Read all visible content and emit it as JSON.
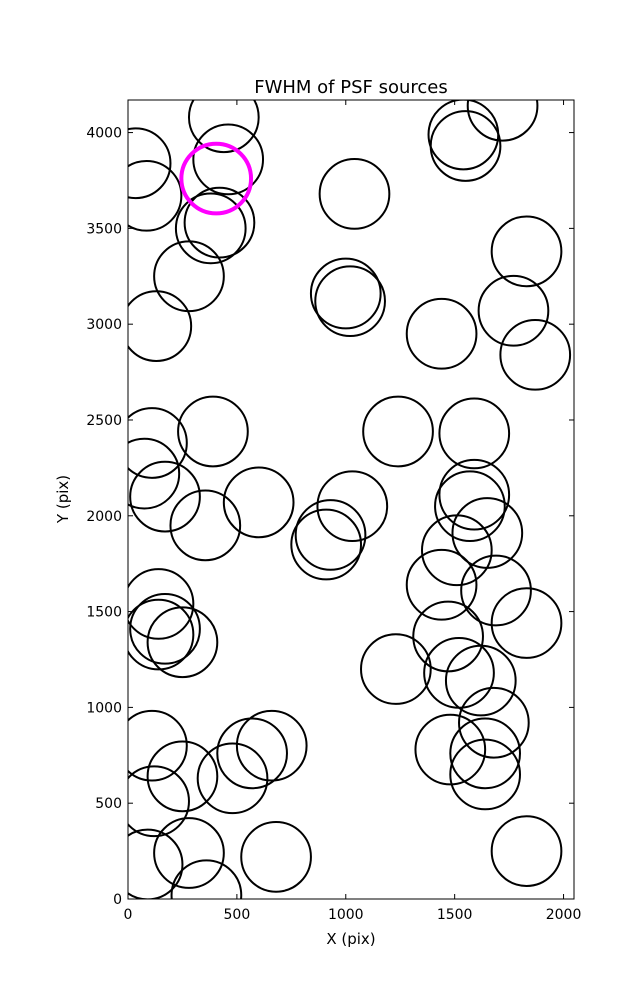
{
  "chart_data": {
    "type": "scatter",
    "title": "FWHM of PSF sources",
    "xlabel": "X (pix)",
    "ylabel": "Y (pix)",
    "xlim": [
      0,
      2048
    ],
    "ylim": [
      0,
      4170
    ],
    "xticks": [
      0,
      500,
      1000,
      1500,
      2000
    ],
    "yticks": [
      0,
      500,
      1000,
      1500,
      2000,
      2500,
      3000,
      3500,
      4000
    ],
    "grid": false,
    "marker": "open-circle",
    "radius": 160,
    "default_color": "#000000",
    "highlight_color": "#ff00ff",
    "points": [
      {
        "x": 35,
        "y": 3840
      },
      {
        "x": 85,
        "y": 3670
      },
      {
        "x": 440,
        "y": 4080
      },
      {
        "x": 460,
        "y": 3860
      },
      {
        "x": 420,
        "y": 3530
      },
      {
        "x": 380,
        "y": 3500
      },
      {
        "x": 280,
        "y": 3250
      },
      {
        "x": 130,
        "y": 2990
      },
      {
        "x": 1040,
        "y": 3680
      },
      {
        "x": 1000,
        "y": 3160
      },
      {
        "x": 1020,
        "y": 3120
      },
      {
        "x": 1440,
        "y": 2950
      },
      {
        "x": 1540,
        "y": 3990
      },
      {
        "x": 1550,
        "y": 3930
      },
      {
        "x": 1720,
        "y": 4140
      },
      {
        "x": 1830,
        "y": 3380
      },
      {
        "x": 1770,
        "y": 3070
      },
      {
        "x": 1870,
        "y": 2840
      },
      {
        "x": 1240,
        "y": 2440
      },
      {
        "x": 1590,
        "y": 2430
      },
      {
        "x": 110,
        "y": 2380
      },
      {
        "x": 390,
        "y": 2440
      },
      {
        "x": 75,
        "y": 2220
      },
      {
        "x": 170,
        "y": 2100
      },
      {
        "x": 600,
        "y": 2070
      },
      {
        "x": 355,
        "y": 1950
      },
      {
        "x": 1030,
        "y": 2050
      },
      {
        "x": 930,
        "y": 1900
      },
      {
        "x": 910,
        "y": 1850
      },
      {
        "x": 1590,
        "y": 2110
      },
      {
        "x": 1570,
        "y": 2050
      },
      {
        "x": 1650,
        "y": 1910
      },
      {
        "x": 1510,
        "y": 1820
      },
      {
        "x": 1440,
        "y": 1640
      },
      {
        "x": 1690,
        "y": 1610
      },
      {
        "x": 1830,
        "y": 1440
      },
      {
        "x": 140,
        "y": 1540
      },
      {
        "x": 170,
        "y": 1410
      },
      {
        "x": 140,
        "y": 1380
      },
      {
        "x": 250,
        "y": 1340
      },
      {
        "x": 1470,
        "y": 1370
      },
      {
        "x": 1230,
        "y": 1200
      },
      {
        "x": 1520,
        "y": 1180
      },
      {
        "x": 1620,
        "y": 1140
      },
      {
        "x": 1680,
        "y": 920
      },
      {
        "x": 110,
        "y": 800
      },
      {
        "x": 250,
        "y": 640
      },
      {
        "x": 120,
        "y": 510
      },
      {
        "x": 480,
        "y": 630
      },
      {
        "x": 570,
        "y": 760
      },
      {
        "x": 660,
        "y": 800
      },
      {
        "x": 1480,
        "y": 780
      },
      {
        "x": 1640,
        "y": 760
      },
      {
        "x": 1640,
        "y": 650
      },
      {
        "x": 90,
        "y": 180
      },
      {
        "x": 280,
        "y": 240
      },
      {
        "x": 360,
        "y": 20
      },
      {
        "x": 680,
        "y": 220
      },
      {
        "x": 1830,
        "y": 250
      },
      {
        "x": 405,
        "y": 3760,
        "highlight": true
      }
    ]
  }
}
